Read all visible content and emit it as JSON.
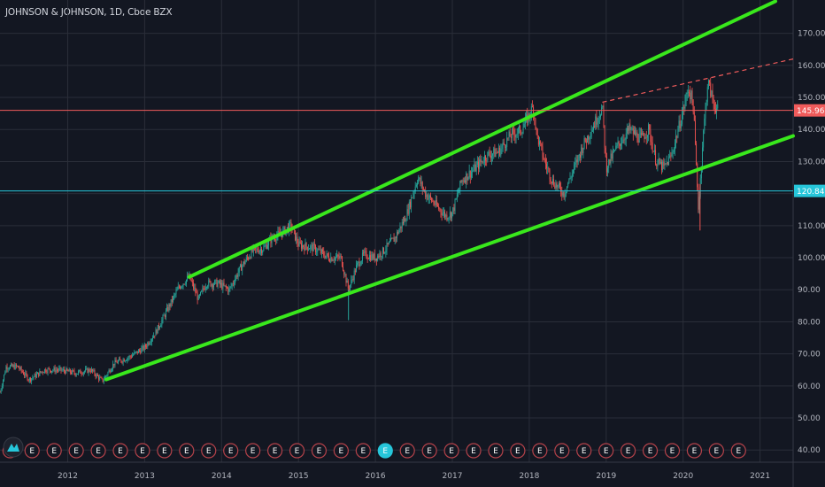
{
  "header": {
    "title": "JOHNSON & JOHNSON, 1D, Cboe BZX"
  },
  "chart_data": {
    "type": "candlestick",
    "title": "JOHNSON & JOHNSON, 1D, Cboe BZX",
    "x_tick_labels": [
      "2012",
      "2013",
      "2014",
      "2015",
      "2016",
      "2017",
      "2018",
      "2019",
      "2020",
      "2021"
    ],
    "x_ticks": [
      2012,
      2013,
      2014,
      2015,
      2016,
      2017,
      2018,
      2019,
      2020,
      2021
    ],
    "xlim": [
      2011.12,
      2021.43
    ],
    "y_ticks": [
      40,
      50,
      60,
      70,
      80,
      90,
      100,
      110,
      120,
      130,
      140,
      150,
      160,
      170
    ],
    "y_tick_labels": [
      "40.00",
      "50.00",
      "60.00",
      "70.00",
      "80.00",
      "90.00",
      "100.00",
      "110.00",
      "120.00",
      "130.00",
      "140.00",
      "150.00",
      "160.00",
      "170.00"
    ],
    "ylim": [
      36.2,
      180.4
    ],
    "price_path": [
      [
        2011.12,
        58
      ],
      [
        2011.2,
        66
      ],
      [
        2011.35,
        66
      ],
      [
        2011.5,
        62
      ],
      [
        2011.7,
        65
      ],
      [
        2011.9,
        65
      ],
      [
        2012.1,
        64
      ],
      [
        2012.3,
        65
      ],
      [
        2012.45,
        61.5
      ],
      [
        2012.6,
        67
      ],
      [
        2012.8,
        69
      ],
      [
        2013.0,
        72
      ],
      [
        2013.15,
        77
      ],
      [
        2013.3,
        84
      ],
      [
        2013.45,
        91
      ],
      [
        2013.58,
        94
      ],
      [
        2013.7,
        87
      ],
      [
        2013.8,
        92
      ],
      [
        2013.95,
        92
      ],
      [
        2014.1,
        90
      ],
      [
        2014.25,
        97
      ],
      [
        2014.4,
        102
      ],
      [
        2014.55,
        103
      ],
      [
        2014.65,
        106
      ],
      [
        2014.8,
        108
      ],
      [
        2014.9,
        110
      ],
      [
        2015.0,
        104
      ],
      [
        2015.2,
        103
      ],
      [
        2015.4,
        100
      ],
      [
        2015.55,
        100
      ],
      [
        2015.65,
        90
      ],
      [
        2015.75,
        97
      ],
      [
        2015.85,
        101
      ],
      [
        2016.0,
        100
      ],
      [
        2016.1,
        102
      ],
      [
        2016.25,
        106
      ],
      [
        2016.4,
        113
      ],
      [
        2016.55,
        125
      ],
      [
        2016.65,
        120
      ],
      [
        2016.8,
        116
      ],
      [
        2016.92,
        113
      ],
      [
        2017.0,
        114
      ],
      [
        2017.12,
        124
      ],
      [
        2017.3,
        128
      ],
      [
        2017.45,
        132
      ],
      [
        2017.6,
        133
      ],
      [
        2017.75,
        138
      ],
      [
        2017.9,
        140
      ],
      [
        2018.05,
        147
      ],
      [
        2018.1,
        138
      ],
      [
        2018.2,
        130
      ],
      [
        2018.3,
        124
      ],
      [
        2018.45,
        120
      ],
      [
        2018.55,
        126
      ],
      [
        2018.7,
        135
      ],
      [
        2018.85,
        142
      ],
      [
        2018.95,
        147
      ],
      [
        2019.0,
        128
      ],
      [
        2019.15,
        135
      ],
      [
        2019.3,
        140
      ],
      [
        2019.45,
        137
      ],
      [
        2019.55,
        140
      ],
      [
        2019.65,
        130
      ],
      [
        2019.75,
        128
      ],
      [
        2019.85,
        132
      ],
      [
        2020.0,
        146
      ],
      [
        2020.07,
        153
      ],
      [
        2020.13,
        148
      ],
      [
        2020.2,
        115
      ],
      [
        2020.25,
        135
      ],
      [
        2020.32,
        155
      ],
      [
        2020.4,
        148
      ],
      [
        2020.45,
        146
      ]
    ],
    "spikes": [
      [
        2015.65,
        80.5
      ],
      [
        2020.22,
        108.5
      ]
    ],
    "annotations": [
      {
        "kind": "trendline",
        "name": "upper-channel-line",
        "color": "#39e81c",
        "from": [
          2013.58,
          94
        ],
        "to": [
          2021.2,
          180
        ]
      },
      {
        "kind": "trendline",
        "name": "lower-channel-line",
        "color": "#39e81c",
        "from": [
          2012.5,
          62
        ],
        "to": [
          2021.43,
          138
        ]
      },
      {
        "kind": "dashed-line",
        "name": "resistance-dashed-line",
        "color": "#f05b5b",
        "from": [
          2018.95,
          148.5
        ],
        "to": [
          2021.43,
          162
        ]
      },
      {
        "kind": "horizontal-line",
        "name": "red-horizontal-line",
        "color": "#f05b5b",
        "y": 145.96
      },
      {
        "kind": "horizontal-line",
        "name": "cyan-horizontal-line",
        "color": "#26c6da",
        "y": 120.84
      }
    ],
    "price_labels": [
      {
        "value": "145.96",
        "color": "#f05b5b"
      },
      {
        "value": "120.84",
        "color": "#26c6da"
      }
    ],
    "earnings_marker": {
      "label": "E",
      "count": 34,
      "start": 2011.25,
      "end": 2020.72,
      "highlight_index": 17
    },
    "colors": {
      "background": "#131722",
      "grid": "#2a2e39",
      "up": "#26a69a",
      "down": "#ef5350"
    }
  }
}
